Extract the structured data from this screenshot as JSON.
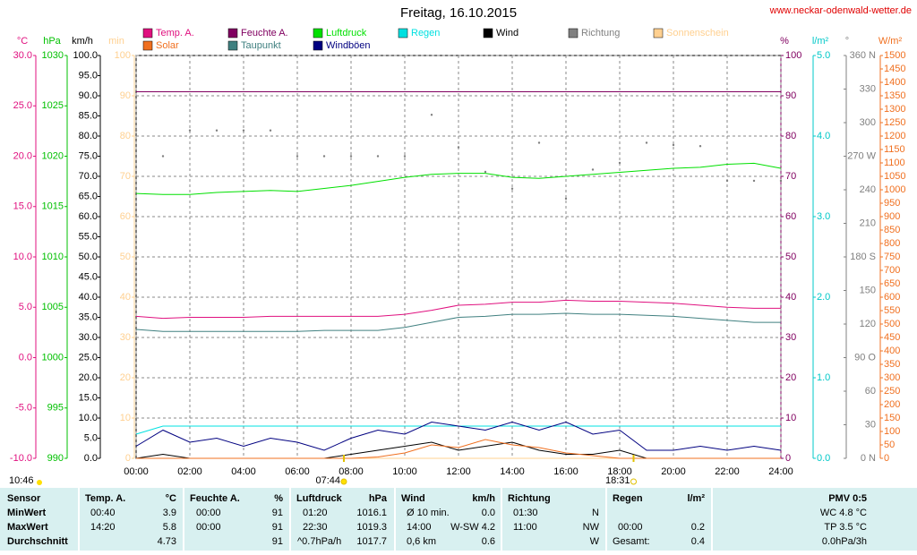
{
  "site": "www.neckar-odenwald-wetter.de",
  "chart_data": {
    "type": "line",
    "title": "Freitag, 16.10.2015",
    "x": [
      0,
      1,
      2,
      3,
      4,
      5,
      6,
      7,
      8,
      9,
      10,
      11,
      12,
      13,
      14,
      15,
      16,
      17,
      18,
      19,
      20,
      21,
      22,
      23,
      24
    ],
    "xlim": [
      0,
      24
    ],
    "xticks": [
      {
        "value": 0,
        "label": "00:00"
      },
      {
        "value": 2,
        "label": "02:00"
      },
      {
        "value": 4,
        "label": "04:00"
      },
      {
        "value": 6,
        "label": "06:00"
      },
      {
        "value": 8,
        "label": "08:00"
      },
      {
        "value": 10,
        "label": "10:00"
      },
      {
        "value": 12,
        "label": "12:00"
      },
      {
        "value": 14,
        "label": "14:00"
      },
      {
        "value": 16,
        "label": "16:00"
      },
      {
        "value": 18,
        "label": "18:00"
      },
      {
        "value": 20,
        "label": "20:00"
      },
      {
        "value": 22,
        "label": "22:00"
      },
      {
        "value": 24,
        "label": "24:00"
      }
    ],
    "grid": true,
    "axes": [
      {
        "label": "°C",
        "color": "#e0107f",
        "lim": [
          -10,
          30
        ],
        "ticks": [
          {
            "value": -10,
            "label": "-10.0"
          },
          {
            "value": -5,
            "label": "-5.0"
          },
          {
            "value": 0,
            "label": "0.0"
          },
          {
            "value": 5,
            "label": "5.0"
          },
          {
            "value": 10,
            "label": "10.0"
          },
          {
            "value": 15,
            "label": "15.0"
          },
          {
            "value": 20,
            "label": "20.0"
          },
          {
            "value": 25,
            "label": "25.0"
          },
          {
            "value": 30,
            "label": "30.0"
          }
        ]
      },
      {
        "label": "hPa",
        "color": "#00c000",
        "lim": [
          990,
          1030
        ],
        "ticks": [
          990,
          995,
          1000,
          1005,
          1010,
          1015,
          1020,
          1025,
          1030
        ]
      },
      {
        "label": "km/h",
        "color": "#000000",
        "lim": [
          0,
          100
        ],
        "ticks": [
          {
            "value": 0,
            "label": "0.0"
          },
          {
            "value": 5,
            "label": "5.0"
          },
          {
            "value": 10,
            "label": "10.0"
          },
          {
            "value": 15,
            "label": "15.0"
          },
          {
            "value": 20,
            "label": "20.0"
          },
          {
            "value": 25,
            "label": "25.0"
          },
          {
            "value": 30,
            "label": "30.0"
          },
          {
            "value": 35,
            "label": "35.0"
          },
          {
            "value": 40,
            "label": "40.0"
          },
          {
            "value": 45,
            "label": "45.0"
          },
          {
            "value": 50,
            "label": "50.0"
          },
          {
            "value": 55,
            "label": "55.0"
          },
          {
            "value": 60,
            "label": "60.0"
          },
          {
            "value": 65,
            "label": "65.0"
          },
          {
            "value": 70,
            "label": "70.0"
          },
          {
            "value": 75,
            "label": "75.0"
          },
          {
            "value": 80,
            "label": "80.0"
          },
          {
            "value": 85,
            "label": "85.0"
          },
          {
            "value": 90,
            "label": "90.0"
          },
          {
            "value": 95,
            "label": "95.0"
          },
          {
            "value": 100,
            "label": "100.0"
          }
        ]
      },
      {
        "label": "min",
        "color": "#ffd090",
        "lim": [
          0,
          100
        ],
        "ticks": [
          0,
          10,
          20,
          30,
          40,
          50,
          60,
          70,
          80,
          90,
          100
        ]
      },
      {
        "label": "%",
        "color": "#800060",
        "lim": [
          0,
          100
        ],
        "ticks": [
          0,
          10,
          20,
          30,
          40,
          50,
          60,
          70,
          80,
          90,
          100
        ]
      },
      {
        "label": "l/m²",
        "color": "#00c8c8",
        "lim": [
          0,
          5
        ],
        "ticks": [
          {
            "value": 0,
            "label": "0.0"
          },
          {
            "value": 1,
            "label": "1.0"
          },
          {
            "value": 2,
            "label": "2.0"
          },
          {
            "value": 3,
            "label": "3.0"
          },
          {
            "value": 4,
            "label": "4.0"
          },
          {
            "value": 5,
            "label": "5.0"
          }
        ]
      },
      {
        "label": "°",
        "color": "#808080",
        "lim": [
          0,
          360
        ],
        "ticks": [
          {
            "value": 0,
            "label": "0 N"
          },
          30,
          60,
          {
            "value": 90,
            "label": "90 O"
          },
          120,
          150,
          {
            "value": 180,
            "label": "180 S"
          },
          210,
          240,
          {
            "value": 270,
            "label": "270 W"
          },
          300,
          330,
          {
            "value": 360,
            "label": "360 N"
          }
        ]
      },
      {
        "label": "W/m²",
        "color": "#f07020",
        "lim": [
          0,
          1500
        ],
        "ticks": [
          0,
          50,
          100,
          150,
          200,
          250,
          300,
          350,
          400,
          450,
          500,
          550,
          600,
          650,
          700,
          750,
          800,
          850,
          900,
          950,
          1000,
          1050,
          1100,
          1150,
          1200,
          1250,
          1300,
          1350,
          1400,
          1450,
          1500
        ]
      }
    ],
    "series": [
      {
        "name": "Temp. A.",
        "color": "#e0107f",
        "axis": 0,
        "style": "line",
        "values": [
          4.1,
          3.9,
          4.0,
          4.0,
          4.0,
          4.1,
          4.1,
          4.1,
          4.1,
          4.1,
          4.3,
          4.7,
          5.2,
          5.3,
          5.5,
          5.5,
          5.7,
          5.6,
          5.6,
          5.5,
          5.4,
          5.2,
          5.0,
          4.9,
          4.9
        ]
      },
      {
        "name": "Feuchte A.",
        "color": "#800060",
        "axis": 4,
        "style": "line",
        "values": [
          91,
          91,
          91,
          91,
          91,
          91,
          91,
          91,
          91,
          91,
          91,
          91,
          91,
          91,
          91,
          91,
          91,
          91,
          91,
          91,
          91,
          91,
          91,
          91,
          91
        ]
      },
      {
        "name": "Luftdruck",
        "color": "#00e000",
        "axis": 1,
        "style": "line",
        "values": [
          1016.3,
          1016.2,
          1016.2,
          1016.4,
          1016.5,
          1016.6,
          1016.5,
          1016.8,
          1017.1,
          1017.5,
          1017.9,
          1018.2,
          1018.3,
          1018.3,
          1017.9,
          1017.8,
          1018.0,
          1018.2,
          1018.4,
          1018.6,
          1018.8,
          1018.9,
          1019.2,
          1019.3,
          1018.8
        ]
      },
      {
        "name": "Regen",
        "color": "#00e0e0",
        "axis": 5,
        "style": "line",
        "values": [
          0.3,
          0.4,
          0.4,
          0.4,
          0.4,
          0.4,
          0.4,
          0.4,
          0.4,
          0.4,
          0.4,
          0.4,
          0.4,
          0.4,
          0.4,
          0.4,
          0.4,
          0.4,
          0.4,
          0.4,
          0.4,
          0.4,
          0.4,
          0.4,
          0.4
        ]
      },
      {
        "name": "Wind",
        "color": "#000000",
        "axis": 2,
        "style": "line",
        "values": [
          0,
          1,
          0,
          0,
          0,
          0,
          0,
          0,
          1,
          2,
          3,
          4,
          2,
          3,
          4,
          2,
          1,
          1,
          2,
          0,
          0,
          0,
          0,
          0,
          0
        ]
      },
      {
        "name": "Richtung",
        "color": "#808080",
        "axis": 6,
        "style": "dots",
        "values": [
          293,
          270,
          293,
          293,
          293,
          293,
          270,
          270,
          270,
          270,
          270,
          307,
          278,
          256,
          241,
          282,
          232,
          258,
          264,
          282,
          280,
          279,
          248,
          248,
          248
        ]
      },
      {
        "name": "Sonnenschein",
        "color": "#ffd090",
        "axis": 3,
        "style": "line",
        "values": [
          0,
          0,
          0,
          0,
          0,
          0,
          0,
          0,
          0,
          0,
          0,
          0,
          0,
          0,
          0,
          0,
          0,
          0,
          0,
          0,
          0,
          0,
          0,
          0,
          0
        ]
      },
      {
        "name": "Solar",
        "color": "#f07020",
        "axis": 7,
        "style": "line",
        "values": [
          0,
          0,
          0,
          0,
          0,
          0,
          0,
          0,
          0,
          5,
          20,
          50,
          40,
          70,
          50,
          40,
          20,
          10,
          0,
          0,
          0,
          0,
          0,
          0,
          0
        ]
      },
      {
        "name": "Taupunkt",
        "color": "#408080",
        "axis": 0,
        "style": "line",
        "values": [
          2.8,
          2.6,
          2.6,
          2.6,
          2.6,
          2.6,
          2.6,
          2.7,
          2.7,
          2.7,
          3.0,
          3.5,
          4.0,
          4.1,
          4.3,
          4.3,
          4.4,
          4.3,
          4.3,
          4.2,
          4.1,
          3.9,
          3.7,
          3.5,
          3.5
        ]
      },
      {
        "name": "Windböen",
        "color": "#000080",
        "axis": 2,
        "style": "line",
        "values": [
          3,
          7,
          4,
          5,
          3,
          5,
          4,
          2,
          5,
          7,
          6,
          9,
          8,
          7,
          9,
          7,
          9,
          6,
          7,
          2,
          2,
          3,
          2,
          3,
          2
        ]
      }
    ],
    "sun": {
      "daylength": "10:46",
      "sunrise": {
        "value": 7.733,
        "label": "07:44"
      },
      "sunset": {
        "value": 18.517,
        "label": "18:31"
      }
    }
  },
  "table": {
    "rows": [
      [
        "Sensor",
        "Temp. A.",
        "°C",
        "Feuchte A.",
        "%",
        "Luftdruck",
        "hPa",
        "Wind",
        "km/h",
        "Richtung",
        "Regen",
        "l/m²",
        "PMV 0:5"
      ],
      [
        "MinWert",
        "00:40",
        "3.9",
        "00:00",
        "91",
        "01:20",
        "1016.1",
        "Ø 10 min.",
        "0.0",
        "01:30",
        "N",
        "WC 4.8 °C"
      ],
      [
        "MaxWert",
        "14:20",
        "5.8",
        "00:00",
        "91",
        "22:30",
        "1019.3",
        "14:00",
        "W-SW 4.2",
        "11:00",
        "NW",
        "00:00",
        "0.2",
        "TP 3.5 °C"
      ],
      [
        "Durchschnitt",
        "4.73",
        "91",
        "^0.7hPa/h",
        "1017.7",
        "0,6 km",
        "0.6",
        "W",
        "Gesamt:",
        "0.4",
        "0.0hPa/3h"
      ]
    ]
  }
}
